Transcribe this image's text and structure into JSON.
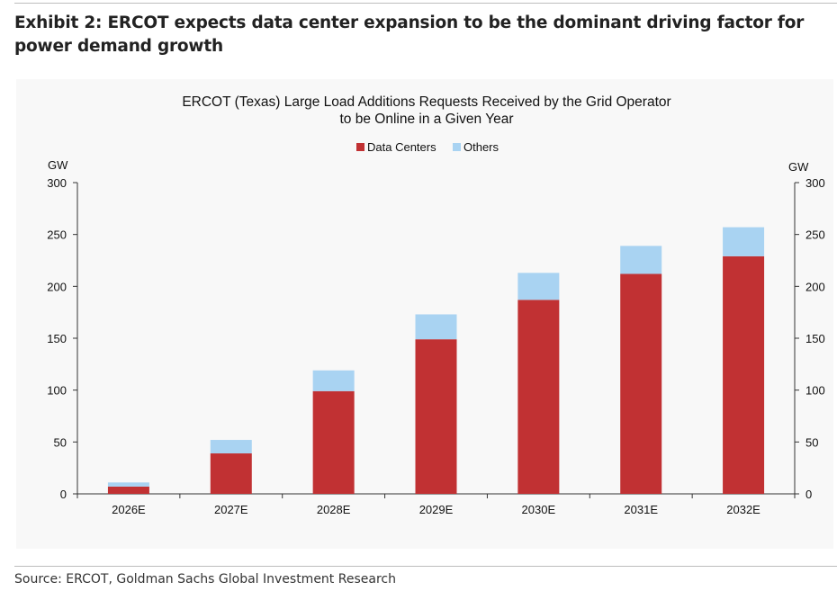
{
  "exhibit_title": "Exhibit 2: ERCOT expects data center expansion to be the dominant driving factor for power demand growth",
  "source": "Source: ERCOT, Goldman Sachs Global Investment Research",
  "colors": {
    "data_centers": "#c13133",
    "others": "#a9d3f2",
    "axis": "#333333"
  },
  "chart_data": {
    "type": "bar",
    "stacked": true,
    "title_lines": [
      "ERCOT (Texas) Large Load Additions Requests Received by the Grid Operator",
      "to be Online in a Given Year"
    ],
    "categories": [
      "2026E",
      "2027E",
      "2028E",
      "2029E",
      "2030E",
      "2031E",
      "2032E"
    ],
    "series": [
      {
        "name": "Data Centers",
        "values": [
          7,
          39,
          99,
          149,
          187,
          212,
          229
        ]
      },
      {
        "name": "Others",
        "values": [
          4,
          13,
          20,
          24,
          26,
          27,
          28
        ]
      }
    ],
    "ylabel_left": "GW",
    "ylabel_right": "GW",
    "ylim": [
      0,
      300
    ],
    "yticks": [
      0,
      50,
      100,
      150,
      200,
      250,
      300
    ],
    "grid": false,
    "legend_position": "top-center"
  }
}
